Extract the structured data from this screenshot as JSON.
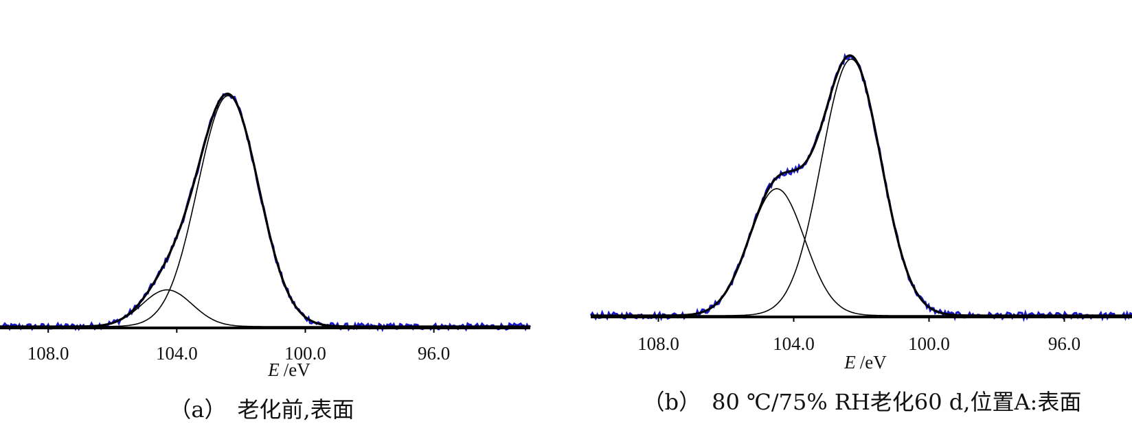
{
  "colors": {
    "raw": "#1a1acc",
    "envelope": "#000000",
    "component": "#000000",
    "axis": "#000000"
  },
  "chart_data": [
    {
      "type": "line",
      "panel": "a",
      "caption": "（a）　老化前,表面",
      "xlabel_var": "E",
      "xlabel_unit": "/eV",
      "x_reversed": true,
      "xlim": [
        109.5,
        93.0
      ],
      "ylim": [
        0,
        1
      ],
      "xticks": [
        108.0,
        104.0,
        100.0,
        96.0
      ],
      "xtick_labels": [
        "108.0",
        "104.0",
        "100.0",
        "96.0"
      ],
      "baseline": 0.0,
      "components": [
        {
          "center": 102.4,
          "height": 0.85,
          "sigma": 0.95
        },
        {
          "center": 104.3,
          "height": 0.135,
          "sigma": 0.78
        }
      ],
      "series": [
        {
          "role": "raw_data"
        },
        {
          "role": "envelope_fit"
        },
        {
          "role": "component_1"
        },
        {
          "role": "component_2"
        }
      ]
    },
    {
      "type": "line",
      "panel": "b",
      "caption": "（b）　80 ℃/75% RH老化60 d,位置A:表面",
      "xlabel_var": "E",
      "xlabel_unit": "/eV",
      "x_reversed": true,
      "xlim": [
        110.0,
        94.0
      ],
      "ylim": [
        0,
        1
      ],
      "xticks": [
        108.0,
        104.0,
        100.0,
        96.0
      ],
      "xtick_labels": [
        "108.0",
        "104.0",
        "100.0",
        "96.0"
      ],
      "baseline": 0.0,
      "components": [
        {
          "center": 102.3,
          "height": 0.93,
          "sigma": 0.88
        },
        {
          "center": 104.5,
          "height": 0.46,
          "sigma": 0.82
        }
      ],
      "series": [
        {
          "role": "raw_data"
        },
        {
          "role": "envelope_fit"
        },
        {
          "role": "component_1"
        },
        {
          "role": "component_2"
        }
      ]
    }
  ]
}
